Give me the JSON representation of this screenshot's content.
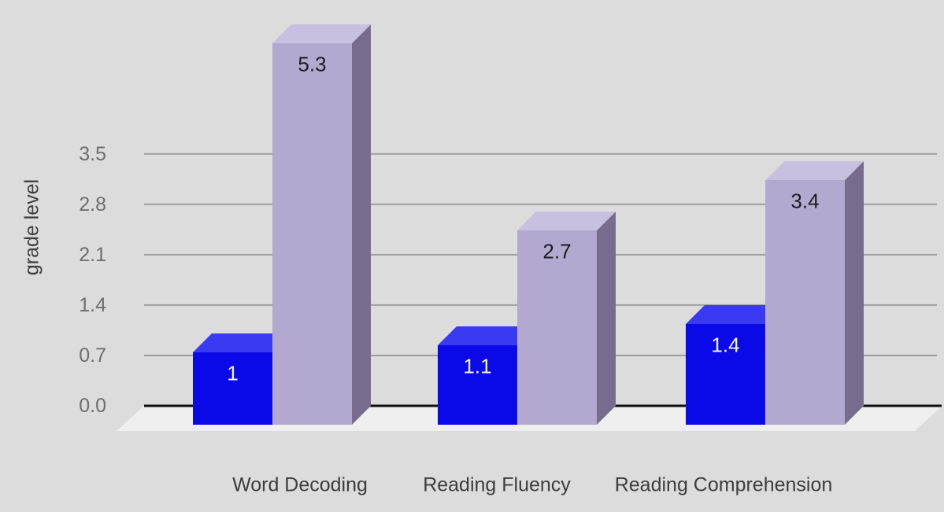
{
  "chart_data": {
    "type": "bar",
    "variant": "3d-column",
    "title": "",
    "xlabel": "",
    "ylabel": "grade level",
    "categories": [
      "Word Decoding",
      "Reading Fluency",
      "Reading Comprehension"
    ],
    "series": [
      {
        "name": "blue-series",
        "values": [
          1,
          1.1,
          1.4
        ],
        "value_labels": [
          "1",
          "1.1",
          "1.4"
        ]
      },
      {
        "name": "purple-series",
        "values": [
          5.3,
          2.7,
          3.4
        ],
        "value_labels": [
          "5.3",
          "2.7",
          "3.4"
        ]
      }
    ],
    "yticks": [
      0.0,
      0.7,
      1.4,
      2.1,
      2.8,
      3.5
    ],
    "ytick_labels": [
      "0.0",
      "0.7",
      "1.4",
      "2.1",
      "2.8",
      "3.5"
    ],
    "ylim": [
      0,
      5.65
    ],
    "grid": true,
    "legend": "none"
  },
  "colors": {
    "background": "#dcdcdc",
    "floor": "#efefef",
    "gridline": "#9e9e9e",
    "baseline": "#0d0d0d",
    "tick_text": "#6e6e6e",
    "category_text": "#3d3d3d",
    "axis_title_text": "#3d3d3d",
    "blue_front": "#0a0ae8",
    "blue_top": "#3a3af2",
    "blue_label": "#f5f5f5",
    "purple_front": "#b2a8d0",
    "purple_top": "#c8c0e0",
    "purple_side": "#776c8e",
    "purple_label": "#1c1c1c"
  }
}
